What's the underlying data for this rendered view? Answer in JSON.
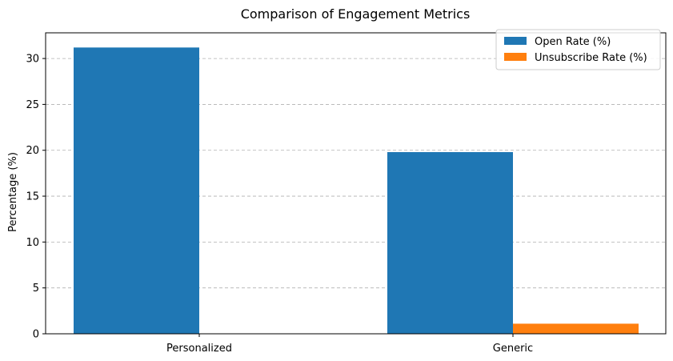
{
  "chart_data": {
    "type": "bar",
    "title": "Comparison of Engagement Metrics",
    "xlabel": "",
    "ylabel": "Percentage (%)",
    "categories": [
      "Personalized",
      "Generic"
    ],
    "series": [
      {
        "name": "Open Rate (%)",
        "values": [
          31.2,
          19.8
        ],
        "color": "#1f77b4"
      },
      {
        "name": "Unsubscribe Rate (%)",
        "values": [
          0.0,
          1.1
        ],
        "color": "#ff7f0e"
      }
    ],
    "ylim": [
      0,
      32.8
    ],
    "yticks": [
      0,
      5,
      10,
      15,
      20,
      25,
      30
    ],
    "grid": "y-dashed",
    "legend_position": "top-right"
  }
}
